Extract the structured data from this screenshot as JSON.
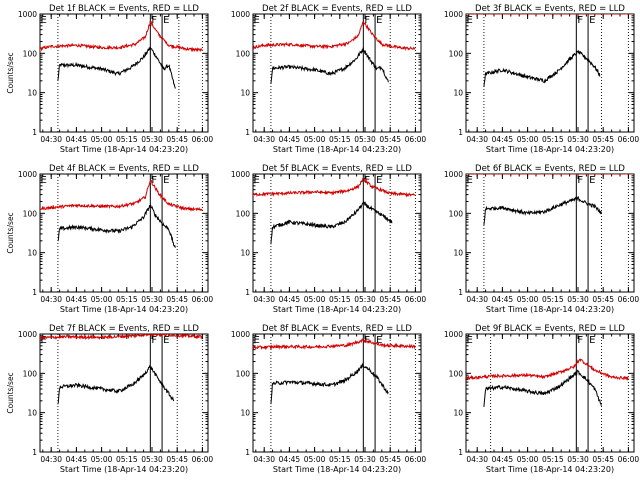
{
  "figure": {
    "background": "#ffffff",
    "colors": {
      "events": "#000000",
      "lld": "#d40000",
      "axes": "#000000"
    }
  },
  "chart_data": [
    {
      "type": "line",
      "panel": 1,
      "title": "Det 1f BLACK = Events, RED = LLD",
      "xlabel": "Start Time (18-Apr-14 04:23:20)",
      "ylabel": "Counts/sec",
      "yscale": "log",
      "ylim": [
        1,
        1000
      ],
      "xlim": [
        "04:23:20",
        "06:03:20"
      ],
      "x_ticks": [
        "04:30",
        "04:45",
        "05:00",
        "05:15",
        "05:30",
        "05:45",
        "06:00"
      ],
      "y_ticks": [
        "1",
        "10",
        "100",
        "1000"
      ],
      "dotted_lines": [
        "04:34",
        "05:46",
        "06:00"
      ],
      "solid_lines": [
        "05:29",
        "05:36"
      ],
      "markers": [
        {
          "text": "E",
          "x": "04:23"
        },
        {
          "text": "F",
          "x": "05:29"
        },
        {
          "text": "E",
          "x": "05:36"
        }
      ],
      "series": [
        {
          "name": "BLACK = Events",
          "color": "#000000",
          "x": [
            "04:34",
            "04:35",
            "04:45",
            "05:00",
            "05:10",
            "05:18",
            "05:25",
            "05:29",
            "05:32",
            "05:37",
            "05:40",
            "05:44"
          ],
          "y": [
            20,
            50,
            50,
            40,
            30,
            45,
            80,
            140,
            90,
            40,
            50,
            12
          ]
        },
        {
          "name": "RED = LLD",
          "color": "#d40000",
          "x": [
            "04:23",
            "04:30",
            "04:45",
            "05:00",
            "05:10",
            "05:20",
            "05:26",
            "05:29",
            "05:34",
            "05:40",
            "05:50",
            "06:00"
          ],
          "y": [
            130,
            150,
            160,
            140,
            140,
            170,
            260,
            640,
            300,
            160,
            130,
            120
          ]
        }
      ]
    },
    {
      "type": "line",
      "panel": 2,
      "title": "Det 2f BLACK = Events, RED = LLD",
      "xlabel": "Start Time (18-Apr-14 04:23:20)",
      "ylabel": "",
      "yscale": "log",
      "ylim": [
        1,
        1000
      ],
      "xlim": [
        "04:23:20",
        "06:03:20"
      ],
      "x_ticks": [
        "04:30",
        "04:45",
        "05:00",
        "05:15",
        "05:30",
        "05:45",
        "06:00"
      ],
      "y_ticks": [
        "1",
        "10",
        "100",
        "1000"
      ],
      "dotted_lines": [
        "04:34",
        "05:45",
        "06:00"
      ],
      "solid_lines": [
        "05:29",
        "05:36"
      ],
      "markers": [
        {
          "text": "E",
          "x": "04:23"
        },
        {
          "text": "F",
          "x": "05:29"
        },
        {
          "text": "E",
          "x": "05:36"
        }
      ],
      "series": [
        {
          "name": "BLACK = Events",
          "color": "#000000",
          "x": [
            "04:34",
            "04:35",
            "04:45",
            "05:00",
            "05:10",
            "05:18",
            "05:25",
            "05:29",
            "05:32",
            "05:37",
            "05:40",
            "05:44"
          ],
          "y": [
            18,
            42,
            45,
            38,
            30,
            42,
            75,
            130,
            80,
            40,
            45,
            18
          ]
        },
        {
          "name": "RED = LLD",
          "color": "#d40000",
          "x": [
            "04:23",
            "04:30",
            "04:45",
            "05:00",
            "05:10",
            "05:20",
            "05:26",
            "05:29",
            "05:34",
            "05:40",
            "05:50",
            "06:00"
          ],
          "y": [
            140,
            160,
            170,
            150,
            150,
            180,
            280,
            650,
            320,
            170,
            140,
            130
          ]
        }
      ]
    },
    {
      "type": "line",
      "panel": 3,
      "title": "Det 3f BLACK = Events, RED = LLD",
      "xlabel": "Start Time (18-Apr-14 04:23:20)",
      "ylabel": "",
      "yscale": "log",
      "ylim": [
        1,
        1000
      ],
      "xlim": [
        "04:23:20",
        "06:03:20"
      ],
      "x_ticks": [
        "04:30",
        "04:45",
        "05:00",
        "05:15",
        "05:30",
        "05:45",
        "06:00"
      ],
      "y_ticks": [
        "1",
        "10",
        "100",
        "1000"
      ],
      "dotted_lines": [
        "04:34",
        "05:44",
        "06:00"
      ],
      "solid_lines": [
        "05:29",
        "05:36"
      ],
      "markers": [
        {
          "text": "E",
          "x": "04:23"
        },
        {
          "text": "F",
          "x": "05:29"
        },
        {
          "text": "E",
          "x": "05:36"
        }
      ],
      "series": [
        {
          "name": "BLACK = Events",
          "color": "#000000",
          "x": [
            "04:34",
            "04:35",
            "04:45",
            "05:00",
            "05:10",
            "05:18",
            "05:25",
            "05:30",
            "05:35",
            "05:40",
            "05:43"
          ],
          "y": [
            15,
            30,
            38,
            25,
            20,
            35,
            70,
            110,
            75,
            45,
            28
          ]
        },
        {
          "name": "RED = LLD",
          "color": "#d40000",
          "x": [
            "04:23",
            "05:00",
            "06:03"
          ],
          "y": [
            1000,
            1000,
            1000
          ]
        }
      ]
    },
    {
      "type": "line",
      "panel": 4,
      "title": "Det 4f BLACK = Events, RED = LLD",
      "xlabel": "Start Time (18-Apr-14 04:23:20)",
      "ylabel": "Counts/sec",
      "yscale": "log",
      "ylim": [
        1,
        1000
      ],
      "xlim": [
        "04:23:20",
        "06:03:20"
      ],
      "x_ticks": [
        "04:30",
        "04:45",
        "05:00",
        "05:15",
        "05:30",
        "05:45",
        "06:00"
      ],
      "y_ticks": [
        "1",
        "10",
        "100",
        "1000"
      ],
      "dotted_lines": [
        "04:34",
        "05:45",
        "06:00"
      ],
      "solid_lines": [
        "05:29",
        "05:36"
      ],
      "markers": [
        {
          "text": "E",
          "x": "04:23"
        },
        {
          "text": "F",
          "x": "05:29"
        },
        {
          "text": "E",
          "x": "05:36"
        }
      ],
      "series": [
        {
          "name": "BLACK = Events",
          "color": "#000000",
          "x": [
            "04:34",
            "04:35",
            "04:45",
            "05:00",
            "05:10",
            "05:18",
            "05:25",
            "05:29",
            "05:32",
            "05:37",
            "05:40",
            "05:44"
          ],
          "y": [
            18,
            40,
            45,
            38,
            35,
            45,
            80,
            160,
            90,
            50,
            40,
            12
          ]
        },
        {
          "name": "RED = LLD",
          "color": "#d40000",
          "x": [
            "04:23",
            "04:30",
            "04:45",
            "05:00",
            "05:10",
            "05:20",
            "05:26",
            "05:29",
            "05:34",
            "05:40",
            "05:50",
            "06:00"
          ],
          "y": [
            130,
            140,
            160,
            150,
            150,
            180,
            260,
            700,
            320,
            170,
            130,
            125
          ]
        }
      ]
    },
    {
      "type": "line",
      "panel": 5,
      "title": "Det 5f BLACK = Events, RED = LLD",
      "xlabel": "Start Time (18-Apr-14 04:23:20)",
      "ylabel": "",
      "yscale": "log",
      "ylim": [
        1,
        1000
      ],
      "xlim": [
        "04:23:20",
        "06:03:20"
      ],
      "x_ticks": [
        "04:30",
        "04:45",
        "05:00",
        "05:15",
        "05:30",
        "05:45",
        "06:00"
      ],
      "y_ticks": [
        "1",
        "10",
        "100",
        "1000"
      ],
      "dotted_lines": [
        "04:34",
        "05:45",
        "06:00"
      ],
      "solid_lines": [
        "05:29",
        "05:36"
      ],
      "markers": [
        {
          "text": "E",
          "x": "04:23"
        },
        {
          "text": "F",
          "x": "05:29"
        },
        {
          "text": "E",
          "x": "05:36"
        }
      ],
      "series": [
        {
          "name": "BLACK = Events",
          "color": "#000000",
          "x": [
            "04:34",
            "04:35",
            "04:45",
            "05:00",
            "05:10",
            "05:18",
            "05:25",
            "05:29",
            "05:35",
            "05:40",
            "05:46"
          ],
          "y": [
            18,
            45,
            60,
            50,
            45,
            60,
            110,
            180,
            120,
            90,
            60
          ]
        },
        {
          "name": "RED = LLD",
          "color": "#d40000",
          "x": [
            "04:23",
            "04:40",
            "05:00",
            "05:10",
            "05:20",
            "05:26",
            "05:29",
            "05:34",
            "05:45",
            "06:00"
          ],
          "y": [
            300,
            320,
            350,
            330,
            380,
            480,
            750,
            480,
            320,
            290
          ]
        }
      ]
    },
    {
      "type": "line",
      "panel": 6,
      "title": "Det 6f BLACK = Events, RED = LLD",
      "xlabel": "Start Time (18-Apr-14 04:23:20)",
      "ylabel": "",
      "yscale": "log",
      "ylim": [
        1,
        1000
      ],
      "xlim": [
        "04:23:20",
        "06:03:20"
      ],
      "x_ticks": [
        "04:30",
        "04:45",
        "05:00",
        "05:15",
        "05:30",
        "05:45",
        "06:00"
      ],
      "y_ticks": [
        "1",
        "10",
        "100",
        "1000"
      ],
      "dotted_lines": [
        "04:34",
        "05:44",
        "06:00"
      ],
      "solid_lines": [
        "05:29",
        "05:36"
      ],
      "markers": [
        {
          "text": "E",
          "x": "04:23"
        },
        {
          "text": "F",
          "x": "05:29"
        },
        {
          "text": "E",
          "x": "05:36"
        }
      ],
      "series": [
        {
          "name": "BLACK = Events",
          "color": "#000000",
          "x": [
            "04:34",
            "04:35",
            "04:45",
            "05:00",
            "05:10",
            "05:20",
            "05:30",
            "05:35",
            "05:40",
            "05:44"
          ],
          "y": [
            50,
            130,
            140,
            100,
            110,
            170,
            240,
            180,
            150,
            100
          ]
        },
        {
          "name": "RED = LLD",
          "color": "#d40000",
          "x": [
            "04:23",
            "05:00",
            "06:03"
          ],
          "y": [
            1000,
            1000,
            1000
          ]
        }
      ]
    },
    {
      "type": "line",
      "panel": 7,
      "title": "Det 7f BLACK = Events, RED = LLD",
      "xlabel": "Start Time (18-Apr-14 04:23:20)",
      "ylabel": "Counts/sec",
      "yscale": "log",
      "ylim": [
        1,
        1000
      ],
      "xlim": [
        "04:23:20",
        "06:03:20"
      ],
      "x_ticks": [
        "04:30",
        "04:45",
        "05:00",
        "05:15",
        "05:30",
        "05:45",
        "06:00"
      ],
      "y_ticks": [
        "1",
        "10",
        "100",
        "1000"
      ],
      "dotted_lines": [
        "04:34",
        "05:45",
        "06:00"
      ],
      "solid_lines": [
        "05:29",
        "05:36"
      ],
      "markers": [
        {
          "text": "E",
          "x": "04:23"
        },
        {
          "text": "F",
          "x": "05:29"
        },
        {
          "text": "E",
          "x": "05:36"
        }
      ],
      "series": [
        {
          "name": "BLACK = Events",
          "color": "#000000",
          "x": [
            "04:34",
            "04:35",
            "04:45",
            "05:00",
            "05:10",
            "05:18",
            "05:25",
            "05:29",
            "05:33",
            "05:38",
            "05:43"
          ],
          "y": [
            15,
            45,
            50,
            40,
            35,
            50,
            90,
            150,
            80,
            40,
            20
          ]
        },
        {
          "name": "RED = LLD",
          "color": "#d40000",
          "x": [
            "04:23",
            "04:40",
            "05:00",
            "05:20",
            "05:29",
            "05:40",
            "06:00"
          ],
          "y": [
            800,
            850,
            820,
            900,
            1000,
            950,
            850
          ]
        }
      ]
    },
    {
      "type": "line",
      "panel": 8,
      "title": "Det 8f BLACK = Events, RED = LLD",
      "xlabel": "Start Time (18-Apr-14 04:23:20)",
      "ylabel": "",
      "yscale": "log",
      "ylim": [
        1,
        1000
      ],
      "xlim": [
        "04:23:20",
        "06:03:20"
      ],
      "x_ticks": [
        "04:30",
        "04:45",
        "05:00",
        "05:15",
        "05:30",
        "05:45",
        "06:00"
      ],
      "y_ticks": [
        "1",
        "10",
        "100",
        "1000"
      ],
      "dotted_lines": [
        "04:34",
        "05:45",
        "06:00"
      ],
      "solid_lines": [
        "05:29",
        "05:36"
      ],
      "markers": [
        {
          "text": "E",
          "x": "04:23"
        },
        {
          "text": "F",
          "x": "05:29"
        },
        {
          "text": "E",
          "x": "05:36"
        }
      ],
      "series": [
        {
          "name": "BLACK = Events",
          "color": "#000000",
          "x": [
            "04:34",
            "04:35",
            "04:45",
            "05:00",
            "05:10",
            "05:18",
            "05:25",
            "05:29",
            "05:33",
            "05:38",
            "05:44"
          ],
          "y": [
            18,
            55,
            60,
            55,
            50,
            65,
            110,
            160,
            120,
            70,
            30
          ]
        },
        {
          "name": "RED = LLD",
          "color": "#d40000",
          "x": [
            "04:23",
            "04:40",
            "05:00",
            "05:20",
            "05:29",
            "05:40",
            "06:00"
          ],
          "y": [
            450,
            480,
            470,
            520,
            700,
            520,
            480
          ]
        }
      ]
    },
    {
      "type": "line",
      "panel": 9,
      "title": "Det 9f BLACK = Events, RED = LLD",
      "xlabel": "Start Time (18-Apr-14 04:23:20)",
      "ylabel": "",
      "yscale": "log",
      "ylim": [
        1,
        1000
      ],
      "xlim": [
        "04:23:20",
        "06:03:20"
      ],
      "x_ticks": [
        "04:30",
        "04:45",
        "05:00",
        "05:15",
        "05:30",
        "05:45",
        "06:00"
      ],
      "y_ticks": [
        "1",
        "10",
        "100",
        "1000"
      ],
      "dotted_lines": [
        "04:38",
        "05:44",
        "06:00"
      ],
      "solid_lines": [
        "05:29",
        "05:36"
      ],
      "markers": [
        {
          "text": "E",
          "x": "04:23"
        },
        {
          "text": "F",
          "x": "05:29"
        },
        {
          "text": "E",
          "x": "05:36"
        }
      ],
      "series": [
        {
          "name": "BLACK = Events",
          "color": "#000000",
          "x": [
            "04:34",
            "04:35",
            "04:45",
            "05:00",
            "05:10",
            "05:20",
            "05:30",
            "05:35",
            "05:40",
            "05:44"
          ],
          "y": [
            15,
            40,
            45,
            35,
            30,
            50,
            110,
            70,
            40,
            15
          ]
        },
        {
          "name": "RED = LLD",
          "color": "#d40000",
          "x": [
            "04:23",
            "04:40",
            "05:00",
            "05:10",
            "05:20",
            "05:28",
            "05:31",
            "05:40",
            "05:50",
            "06:00"
          ],
          "y": [
            75,
            85,
            90,
            80,
            110,
            150,
            230,
            120,
            80,
            75
          ]
        }
      ]
    }
  ]
}
